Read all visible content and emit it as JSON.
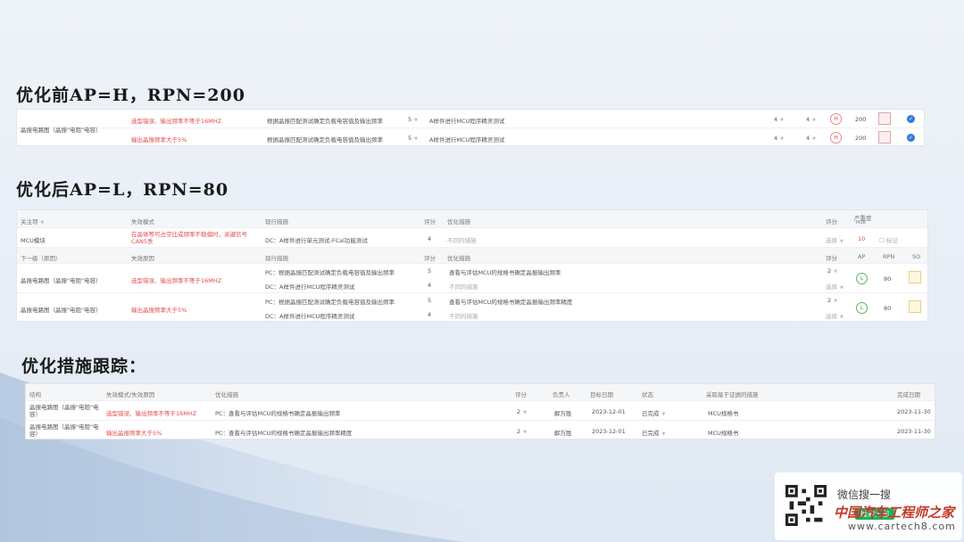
{
  "titles": {
    "before": "优化前AP=H，RPN=200",
    "after": "优化后AP=L，RPN=80",
    "tracking": "优化措施跟踪："
  },
  "before_table": {
    "rows": [
      {
        "structure": "晶振电路图（晶振\"电阻\"电容）",
        "failure": "选型错误、输出频率不等于16MHZ",
        "control": "根据晶振匹配测试确定负载电容值及输出频率",
        "score1": "5",
        "detection": "A样件进行MCU程序精灵测试",
        "s": "4",
        "o": "4",
        "ap": "H",
        "rpn": "200"
      },
      {
        "structure": "",
        "failure": "输出晶振频率大于5%",
        "control": "根据晶振匹配测试确定负载电容值及输出频率",
        "score1": "5",
        "detection": "A样件进行MCU程序精灵测试",
        "s": "4",
        "o": "4",
        "ap": "H",
        "rpn": "200"
      }
    ]
  },
  "after_table": {
    "header1": {
      "focus": "关注项",
      "mode": "失效模式",
      "current": "现行措施",
      "score": "评分",
      "optimize": "优化措施",
      "score2": "评分",
      "severity": "严重度",
      "severity_sub": "MSR"
    },
    "focus_row": {
      "item": "MCU模块",
      "mode": "在晶体等可占空比或频率不稳偏时，关键信号CAN5丢",
      "current": "DC：A样件进行单元测试-FCal功能测试",
      "score": "4",
      "optimize": "不同的措施",
      "select": "选择",
      "severity": "10",
      "flag": "标记"
    },
    "header2": {
      "level": "下一级（原因）",
      "cause": "失效原因",
      "current": "现行措施",
      "score": "评分",
      "optimize": "优化措施",
      "score2": "评分",
      "ap": "AP",
      "rpn": "RPN",
      "so": "SO"
    },
    "rows": [
      {
        "item": "晶振电路图（晶振\"电阻\"电容）",
        "cause": "选型错误、输出频率不等于16MHZ",
        "pc": "PC：根据晶振匹配测试确定负载电容值及输出频率",
        "pc_score": "5",
        "pc_opt": "查看与评估MCU的规格书确定晶振输出频率",
        "pc_opt_score": "2",
        "dc": "DC：A样件进行MCU程序精灵测试",
        "dc_score": "4",
        "dc_opt": "不同的措施",
        "dc_opt_score": "选择",
        "ap": "L",
        "rpn": "80"
      },
      {
        "item": "晶振电路图（晶振\"电阻\"电容）",
        "cause": "输出晶振频率大于5%",
        "pc": "PC：根据晶振匹配测试确定负载电容值及输出频率",
        "pc_score": "5",
        "pc_opt": "查看与评估MCU的规格书确定晶振输出频率精度",
        "pc_opt_score": "2",
        "dc": "DC：A样件进行MCU程序精灵测试",
        "dc_score": "4",
        "dc_opt": "不同的措施",
        "dc_opt_score": "选择",
        "ap": "L",
        "rpn": "80"
      }
    ]
  },
  "tracking_table": {
    "headers": {
      "structure": "结构",
      "mode": "失效模式/失效原因",
      "optimize": "优化措施",
      "score": "评分",
      "owner": "负责人",
      "target": "目标日期",
      "status": "状态",
      "evidence": "采取基于证据的措施",
      "done": "完成日期"
    },
    "rows": [
      {
        "structure": "晶振电路图（晶振\"电阻\"电容）",
        "mode": "选型错误、输出频率不等于16MHZ",
        "optimize": "PC：查看与评估MCU的规格书确定晶振输出频率",
        "score": "2",
        "owner": "解万胜",
        "target": "2023-12-01",
        "status": "已完成",
        "evidence": "MCU规格书",
        "done": "2023-11-30"
      },
      {
        "structure": "晶振电路图（晶振\"电阻\"电容）",
        "mode": "输出晶振频率大于5%",
        "optimize": "PC：查看与评估MCU的规格书确定晶振输出频率精度",
        "score": "2",
        "owner": "解万胜",
        "target": "2023-12-01",
        "status": "已完成",
        "evidence": "MCU规格书",
        "done": "2023-11-30"
      }
    ]
  },
  "watermark": {
    "search": "微信搜一搜",
    "tag": "搜索大咖",
    "brand": "中国汽车工程师之家",
    "url": "www.cartech8.com"
  },
  "colors": {
    "accent_red": "#e24b4b",
    "check_blue": "#2f7fd8",
    "ap_green": "#3a9b3a"
  }
}
